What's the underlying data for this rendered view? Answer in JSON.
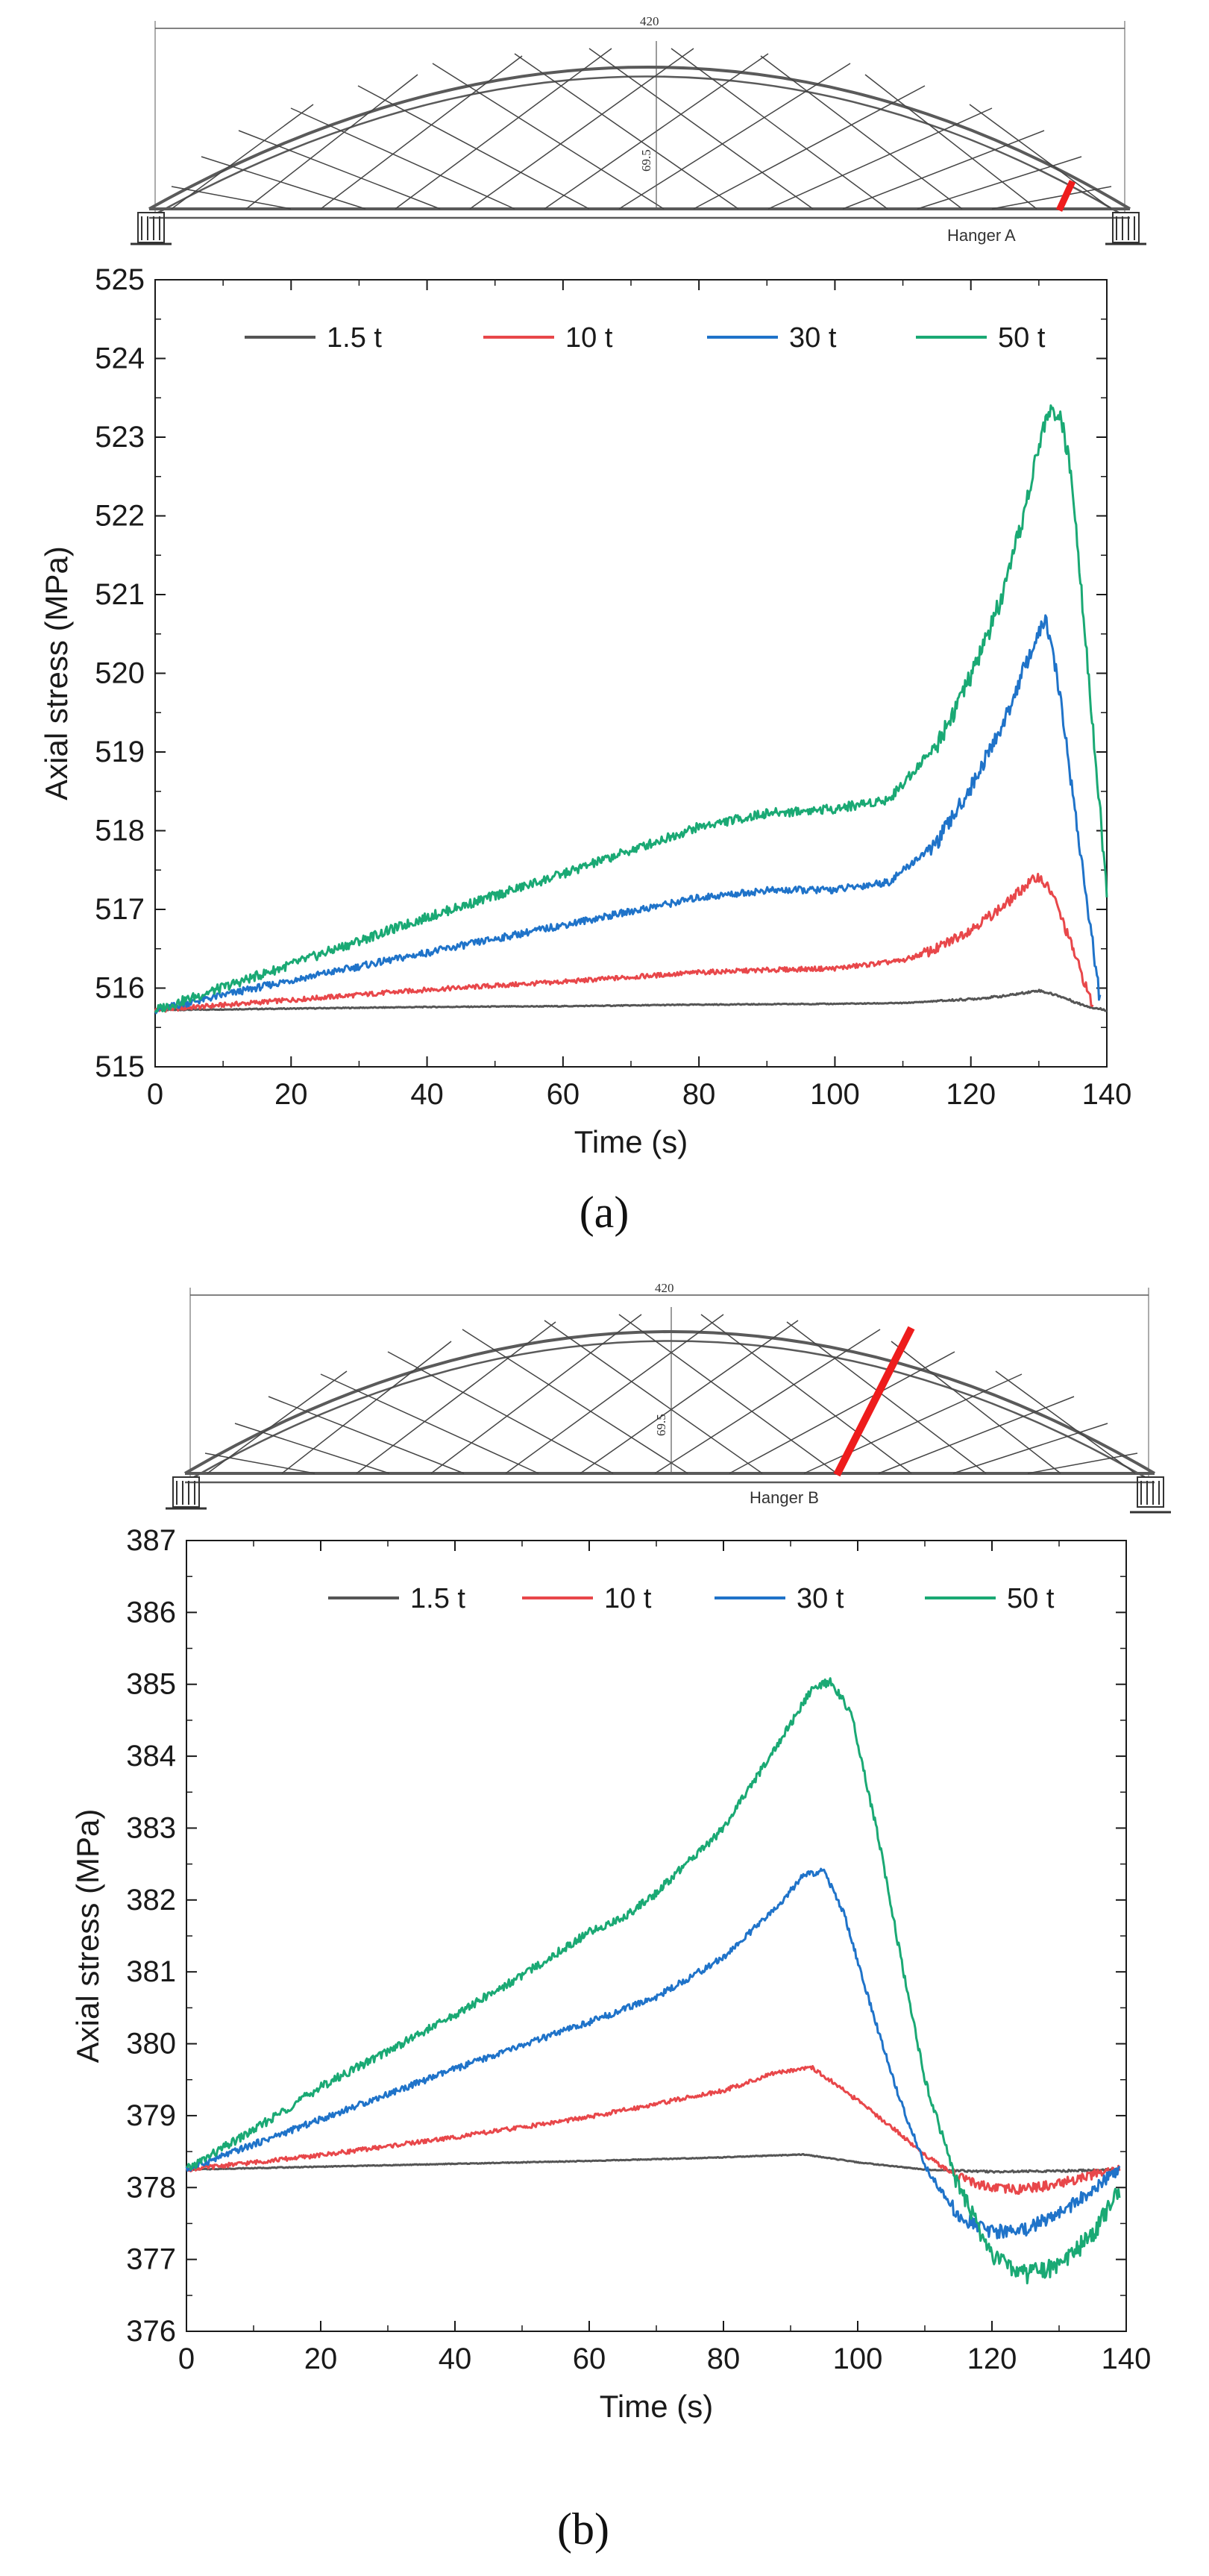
{
  "figure": {
    "panel_a": {
      "caption": "(a)",
      "hanger_label": "Hanger A",
      "span_label": "420",
      "rise_label": "69.5"
    },
    "panel_b": {
      "caption": "(b)",
      "hanger_label": "Hanger B",
      "span_label": "420",
      "rise_label": "69.5"
    }
  },
  "chart_data": [
    {
      "type": "line",
      "panel": "a",
      "title": "",
      "xlabel": "Time (s)",
      "ylabel": "Axial stress (MPa)",
      "xlim": [
        0,
        140
      ],
      "ylim": [
        515,
        525
      ],
      "xticks": [
        0,
        20,
        40,
        60,
        80,
        100,
        120,
        140
      ],
      "yticks": [
        515,
        516,
        517,
        518,
        519,
        520,
        521,
        522,
        523,
        524,
        525
      ],
      "legend_position": "top",
      "series": [
        {
          "name": "1.5 t",
          "color": "#555555",
          "x": [
            0,
            20,
            40,
            60,
            80,
            100,
            110,
            120,
            125,
            130,
            133,
            136,
            138,
            140
          ],
          "y": [
            515.72,
            515.74,
            515.76,
            515.77,
            515.79,
            515.8,
            515.81,
            515.86,
            515.9,
            515.97,
            515.9,
            515.8,
            515.75,
            515.72
          ]
        },
        {
          "name": "10 t",
          "color": "#e8474a",
          "x": [
            0,
            20,
            40,
            60,
            80,
            90,
            100,
            110,
            115,
            120,
            125,
            128,
            130,
            132,
            135,
            138
          ],
          "y": [
            515.72,
            515.85,
            515.98,
            516.08,
            516.2,
            516.23,
            516.25,
            516.35,
            516.5,
            516.75,
            517.05,
            517.3,
            517.42,
            517.2,
            516.5,
            515.75
          ]
        },
        {
          "name": "30 t",
          "color": "#1f73c9",
          "x": [
            0,
            20,
            40,
            60,
            80,
            90,
            100,
            108,
            115,
            120,
            125,
            128,
            131,
            133,
            136,
            139
          ],
          "y": [
            515.72,
            516.1,
            516.45,
            516.8,
            517.15,
            517.24,
            517.25,
            517.35,
            517.85,
            518.55,
            519.4,
            520.1,
            520.7,
            519.8,
            517.8,
            515.85
          ]
        },
        {
          "name": "50 t",
          "color": "#1aa974",
          "x": [
            0,
            20,
            40,
            60,
            70,
            80,
            90,
            100,
            108,
            115,
            120,
            125,
            128,
            131,
            133,
            135,
            137,
            140
          ],
          "y": [
            515.72,
            516.3,
            516.9,
            517.45,
            517.75,
            518.05,
            518.22,
            518.28,
            518.4,
            519.1,
            519.95,
            521.05,
            522.1,
            523.25,
            523.35,
            522.4,
            520.3,
            517.2
          ]
        }
      ]
    },
    {
      "type": "line",
      "panel": "b",
      "title": "",
      "xlabel": "Time (s)",
      "ylabel": "Axial stress (MPa)",
      "xlim": [
        0,
        140
      ],
      "ylim": [
        376,
        387
      ],
      "xticks": [
        0,
        20,
        40,
        60,
        80,
        100,
        120,
        140
      ],
      "yticks": [
        376,
        377,
        378,
        379,
        380,
        381,
        382,
        383,
        384,
        385,
        386,
        387
      ],
      "legend_position": "top",
      "series": [
        {
          "name": "1.5 t",
          "color": "#555555",
          "x": [
            0,
            20,
            40,
            60,
            80,
            92,
            100,
            110,
            120,
            130,
            139
          ],
          "y": [
            378.25,
            378.29,
            378.33,
            378.37,
            378.42,
            378.46,
            378.35,
            378.25,
            378.22,
            378.23,
            378.25
          ]
        },
        {
          "name": "10 t",
          "color": "#e8474a",
          "x": [
            0,
            20,
            40,
            60,
            80,
            88,
            93,
            98,
            105,
            110,
            115,
            120,
            125,
            130,
            135,
            139
          ],
          "y": [
            378.25,
            378.45,
            378.7,
            378.98,
            379.35,
            379.6,
            379.68,
            379.35,
            378.85,
            378.45,
            378.15,
            377.98,
            377.98,
            378.05,
            378.18,
            378.25
          ]
        },
        {
          "name": "30 t",
          "color": "#1f73c9",
          "x": [
            0,
            20,
            40,
            60,
            70,
            80,
            88,
            92,
            95,
            98,
            102,
            106,
            110,
            115,
            120,
            125,
            130,
            135,
            139
          ],
          "y": [
            378.25,
            378.95,
            379.65,
            380.3,
            380.65,
            381.2,
            381.9,
            382.35,
            382.4,
            381.8,
            380.5,
            379.3,
            378.3,
            377.6,
            377.38,
            377.42,
            377.65,
            377.95,
            378.25
          ]
        },
        {
          "name": "50 t",
          "color": "#1aa974",
          "x": [
            0,
            10,
            20,
            30,
            40,
            50,
            60,
            65,
            70,
            80,
            88,
            93,
            96,
            99,
            103,
            107,
            110,
            115,
            120,
            125,
            130,
            135,
            139
          ],
          "y": [
            378.25,
            378.8,
            379.4,
            379.9,
            380.4,
            380.95,
            381.55,
            381.75,
            382.1,
            383.0,
            384.15,
            384.9,
            385.05,
            384.6,
            382.9,
            380.9,
            379.5,
            378.0,
            377.05,
            376.78,
            376.9,
            377.35,
            377.95
          ]
        }
      ]
    }
  ]
}
